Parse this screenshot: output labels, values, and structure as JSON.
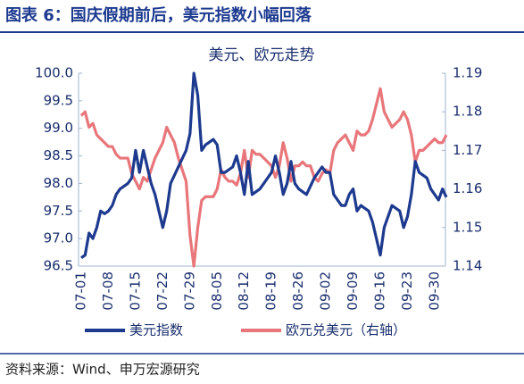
{
  "header": "图表 6：国庆假期前后，美元指数小幅回落",
  "source": "资料来源：Wind、申万宏源研究",
  "chart_data": {
    "type": "line",
    "title": "美元、欧元走势",
    "categories": [
      "07-01",
      null,
      null,
      null,
      null,
      null,
      null,
      "07-08",
      null,
      null,
      null,
      null,
      null,
      null,
      "07-15",
      null,
      null,
      null,
      null,
      null,
      null,
      "07-22",
      null,
      null,
      null,
      null,
      null,
      null,
      "07-29",
      null,
      null,
      null,
      null,
      null,
      null,
      "08-05",
      null,
      null,
      null,
      null,
      null,
      null,
      "08-12",
      null,
      null,
      null,
      null,
      null,
      null,
      "08-19",
      null,
      null,
      null,
      null,
      null,
      null,
      "08-26",
      null,
      null,
      null,
      null,
      null,
      null,
      "09-02",
      null,
      null,
      null,
      null,
      null,
      null,
      "09-09",
      null,
      null,
      null,
      null,
      null,
      null,
      "09-16",
      null,
      null,
      null,
      null,
      null,
      null,
      "09-23",
      null,
      null,
      null,
      null,
      null,
      null,
      "09-30",
      null,
      null,
      null
    ],
    "series": [
      {
        "name": "美元指数",
        "color": "#1d3a8f",
        "axis": "y",
        "values": [
          96.65,
          96.7,
          97.1,
          97.0,
          97.2,
          97.5,
          97.45,
          97.5,
          97.6,
          97.8,
          97.9,
          97.95,
          98.0,
          98.1,
          98.6,
          98.2,
          98.6,
          98.3,
          98.0,
          97.8,
          97.5,
          97.2,
          97.5,
          98.0,
          98.15,
          98.3,
          98.45,
          98.6,
          98.9,
          100.0,
          99.6,
          98.6,
          98.7,
          98.75,
          98.8,
          98.7,
          98.2,
          98.2,
          98.25,
          98.3,
          98.5,
          98.2,
          97.8,
          98.4,
          97.8,
          97.85,
          97.9,
          98.0,
          98.1,
          98.2,
          98.5,
          98.2,
          97.8,
          98.0,
          98.4,
          98.0,
          97.9,
          97.85,
          97.8,
          97.95,
          98.1,
          98.2,
          98.3,
          98.2,
          98.2,
          97.8,
          97.7,
          97.6,
          97.6,
          97.8,
          97.9,
          97.5,
          97.6,
          97.55,
          97.5,
          97.3,
          97.0,
          96.7,
          97.2,
          97.4,
          97.6,
          97.55,
          97.5,
          97.2,
          97.4,
          97.8,
          98.4,
          98.2,
          98.15,
          98.1,
          97.9,
          97.8,
          97.7,
          97.9,
          97.75
        ]
      },
      {
        "name": "欧元兑美元（右轴）",
        "color": "#e8767a",
        "axis": "y2",
        "values": [
          1.179,
          1.18,
          1.176,
          1.177,
          1.174,
          1.173,
          1.172,
          1.171,
          1.171,
          1.169,
          1.168,
          1.168,
          1.168,
          1.164,
          1.162,
          1.16,
          1.163,
          1.162,
          1.165,
          1.168,
          1.17,
          1.172,
          1.176,
          1.174,
          1.172,
          1.168,
          1.165,
          1.162,
          1.148,
          1.14,
          1.15,
          1.157,
          1.158,
          1.158,
          1.158,
          1.16,
          1.165,
          1.163,
          1.162,
          1.162,
          1.161,
          1.164,
          1.17,
          1.163,
          1.17,
          1.169,
          1.169,
          1.168,
          1.167,
          1.166,
          1.163,
          1.166,
          1.172,
          1.168,
          1.162,
          1.166,
          1.166,
          1.167,
          1.166,
          1.166,
          1.163,
          1.162,
          1.164,
          1.165,
          1.164,
          1.17,
          1.172,
          1.173,
          1.174,
          1.172,
          1.17,
          1.175,
          1.174,
          1.174,
          1.175,
          1.178,
          1.182,
          1.186,
          1.18,
          1.178,
          1.176,
          1.177,
          1.178,
          1.18,
          1.178,
          1.174,
          1.167,
          1.17,
          1.17,
          1.171,
          1.172,
          1.173,
          1.172,
          1.172,
          1.174
        ]
      }
    ],
    "ylim": [
      96.5,
      100.0
    ],
    "yticks": [
      96.5,
      {
        "value": 97.0,
        "label": "97.0"
      },
      97.5,
      {
        "value": 98.0,
        "label": "98.0"
      },
      98.5,
      {
        "value": 99.0,
        "label": "99.0"
      },
      99.5,
      {
        "value": 100.0,
        "label": "100.0"
      }
    ],
    "y2lim": [
      1.14,
      1.19
    ],
    "y2ticks": [
      1.14,
      1.15,
      1.16,
      1.17,
      1.18,
      1.19
    ],
    "legend": "bottom",
    "grid": false
  }
}
